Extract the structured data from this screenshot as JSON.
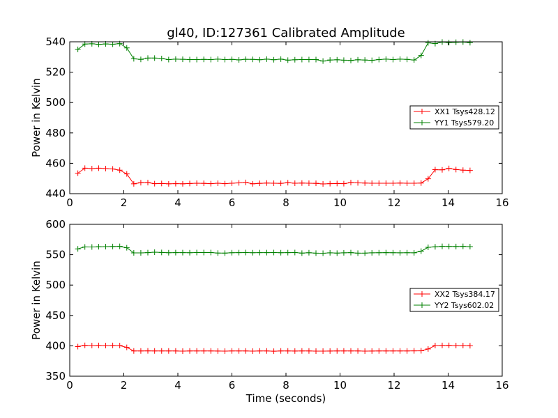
{
  "figure": {
    "title": "gl40, ID:127361 Calibrated Amplitude"
  },
  "chart_data": [
    {
      "type": "line",
      "title": "gl40, ID:127361 Calibrated Amplitude",
      "xlabel": "",
      "ylabel": "Power in Kelvin",
      "xlim": [
        0,
        16
      ],
      "ylim": [
        440,
        540
      ],
      "xticks": [
        0,
        2,
        4,
        6,
        8,
        10,
        12,
        14,
        16
      ],
      "yticks": [
        440,
        460,
        480,
        500,
        520,
        540
      ],
      "grid": false,
      "legend_position": "center-right",
      "x": [
        0.3,
        0.56,
        0.82,
        1.07,
        1.33,
        1.59,
        1.85,
        2.11,
        2.37,
        2.63,
        2.89,
        3.14,
        3.4,
        3.66,
        3.92,
        4.18,
        4.44,
        4.7,
        4.96,
        5.22,
        5.48,
        5.74,
        6.0,
        6.26,
        6.51,
        6.77,
        7.03,
        7.29,
        7.55,
        7.81,
        8.07,
        8.33,
        8.59,
        8.85,
        9.11,
        9.37,
        9.63,
        9.89,
        10.14,
        10.4,
        10.66,
        10.92,
        11.18,
        11.44,
        11.7,
        11.96,
        12.22,
        12.48,
        12.74,
        13.0,
        13.26,
        13.52,
        13.78,
        14.03,
        14.29,
        14.55,
        14.81
      ],
      "series": [
        {
          "name": "XX1 Tsys428.12",
          "color": "#ff0000",
          "values": [
            453.5,
            456.8,
            456.5,
            456.8,
            456.5,
            456.3,
            455.5,
            453.0,
            446.5,
            447.2,
            447.3,
            446.6,
            446.7,
            446.5,
            446.6,
            446.5,
            446.7,
            446.9,
            446.8,
            446.6,
            446.9,
            446.6,
            446.9,
            447.1,
            447.4,
            446.5,
            446.8,
            447.0,
            446.9,
            446.8,
            447.2,
            446.9,
            447.0,
            446.9,
            446.8,
            446.4,
            446.6,
            446.7,
            446.6,
            447.3,
            447.1,
            447.0,
            446.9,
            446.9,
            446.9,
            446.9,
            447.0,
            446.9,
            446.9,
            447.0,
            449.8,
            455.8,
            455.7,
            456.6,
            455.9,
            455.5,
            455.3
          ]
        },
        {
          "name": "YY1 Tsys579.20",
          "color": "#008000",
          "values": [
            535.0,
            538.5,
            538.7,
            538.3,
            538.6,
            538.4,
            538.8,
            536.0,
            528.8,
            528.4,
            529.3,
            529.3,
            529.0,
            528.3,
            528.6,
            528.5,
            528.3,
            528.3,
            528.4,
            528.3,
            528.6,
            528.3,
            528.4,
            528.1,
            528.5,
            528.4,
            528.2,
            528.6,
            528.2,
            528.6,
            527.9,
            528.2,
            528.3,
            528.3,
            528.3,
            527.3,
            528.0,
            528.2,
            527.9,
            527.7,
            528.2,
            528.0,
            527.8,
            528.3,
            528.6,
            528.3,
            528.6,
            528.4,
            528.0,
            531.0,
            539.3,
            538.8,
            539.8,
            539.5,
            539.7,
            539.8,
            539.4
          ]
        }
      ]
    },
    {
      "type": "line",
      "title": "",
      "xlabel": "Time (seconds)",
      "ylabel": "Power in Kelvin",
      "xlim": [
        0,
        16
      ],
      "ylim": [
        350,
        600
      ],
      "xticks": [
        0,
        2,
        4,
        6,
        8,
        10,
        12,
        14,
        16
      ],
      "yticks": [
        350,
        400,
        450,
        500,
        550,
        600
      ],
      "grid": false,
      "legend_position": "center-right",
      "x": [
        0.3,
        0.56,
        0.82,
        1.07,
        1.33,
        1.59,
        1.85,
        2.11,
        2.37,
        2.63,
        2.89,
        3.14,
        3.4,
        3.66,
        3.92,
        4.18,
        4.44,
        4.7,
        4.96,
        5.22,
        5.48,
        5.74,
        6.0,
        6.26,
        6.51,
        6.77,
        7.03,
        7.29,
        7.55,
        7.81,
        8.07,
        8.33,
        8.59,
        8.85,
        9.11,
        9.37,
        9.63,
        9.89,
        10.14,
        10.4,
        10.66,
        10.92,
        11.18,
        11.44,
        11.7,
        11.96,
        12.22,
        12.48,
        12.74,
        13.0,
        13.26,
        13.52,
        13.78,
        14.03,
        14.29,
        14.55,
        14.81
      ],
      "series": [
        {
          "name": "XX2 Tsys384.17",
          "color": "#ff0000",
          "values": [
            398.8,
            400.7,
            400.5,
            400.6,
            400.4,
            400.6,
            400.4,
            397.5,
            391.5,
            391.5,
            391.7,
            391.5,
            391.6,
            391.5,
            391.5,
            391.3,
            391.6,
            391.5,
            391.6,
            391.6,
            391.4,
            391.3,
            391.5,
            391.5,
            391.6,
            391.3,
            391.6,
            391.5,
            391.2,
            391.5,
            391.6,
            391.4,
            391.6,
            391.5,
            391.3,
            391.3,
            391.4,
            391.5,
            391.5,
            391.6,
            391.5,
            391.3,
            391.4,
            391.5,
            391.6,
            391.5,
            391.5,
            391.6,
            391.7,
            391.8,
            394.8,
            400.5,
            400.6,
            400.7,
            400.4,
            400.5,
            400.2
          ]
        },
        {
          "name": "YY2 Tsys602.02",
          "color": "#008000",
          "values": [
            559.6,
            562.8,
            562.7,
            563.1,
            563.3,
            563.5,
            563.7,
            561.5,
            553.0,
            553.0,
            553.4,
            554.1,
            553.7,
            553.3,
            553.4,
            553.4,
            553.2,
            553.5,
            553.5,
            553.6,
            552.7,
            552.6,
            553.3,
            553.4,
            553.6,
            553.2,
            553.4,
            553.4,
            553.5,
            553.2,
            553.4,
            553.5,
            552.6,
            553.2,
            552.5,
            552.4,
            553.1,
            552.6,
            553.1,
            553.4,
            552.5,
            552.6,
            553.1,
            553.2,
            553.4,
            553.2,
            553.1,
            553.2,
            553.1,
            555.8,
            562.2,
            563.0,
            563.8,
            563.6,
            563.5,
            563.7,
            563.3
          ]
        }
      ]
    }
  ]
}
